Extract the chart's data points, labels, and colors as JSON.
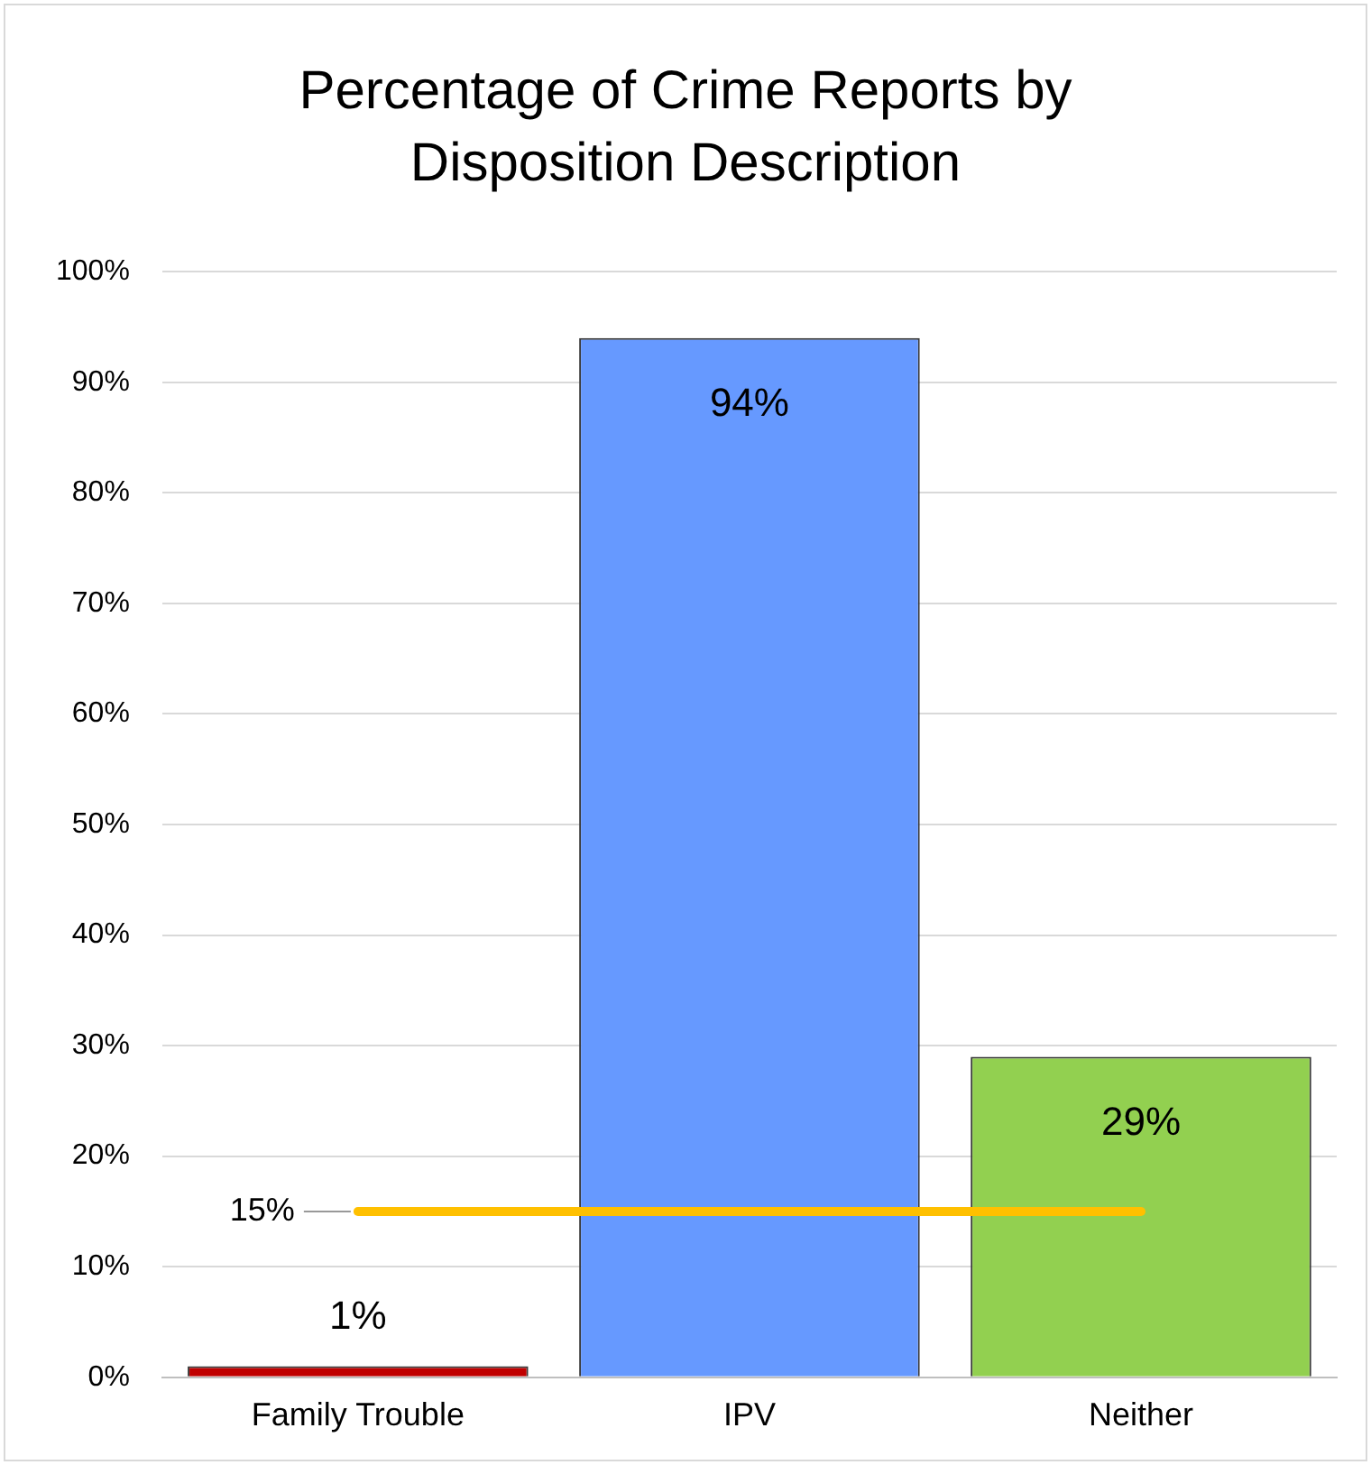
{
  "chart_data": {
    "type": "bar",
    "title": "Percentage of Crime Reports by Disposition Description",
    "categories": [
      "Family Trouble",
      "IPV",
      "Neither"
    ],
    "series": [
      {
        "colors": [
          "#c00000",
          "#6699ff",
          "#92d050"
        ],
        "values": [
          1,
          94,
          29
        ],
        "value_labels": [
          "1%",
          "94%",
          "29%"
        ]
      },
      {
        "type": "line",
        "color": "#ffc000",
        "values": [
          15,
          15,
          15
        ],
        "value_labels": [
          "15%",
          null,
          null
        ]
      }
    ],
    "ylim": [
      0,
      100
    ],
    "yticks": [
      {
        "value": 0,
        "label": "0%"
      },
      {
        "value": 10,
        "label": "10%"
      },
      {
        "value": 20,
        "label": "20%"
      },
      {
        "value": 30,
        "label": "30%"
      },
      {
        "value": 40,
        "label": "40%"
      },
      {
        "value": 50,
        "label": "50%"
      },
      {
        "value": 60,
        "label": "60%"
      },
      {
        "value": 70,
        "label": "70%"
      },
      {
        "value": 80,
        "label": "80%"
      },
      {
        "value": 90,
        "label": "90%"
      },
      {
        "value": 100,
        "label": "100%"
      }
    ],
    "grid": "y",
    "legend": false
  }
}
